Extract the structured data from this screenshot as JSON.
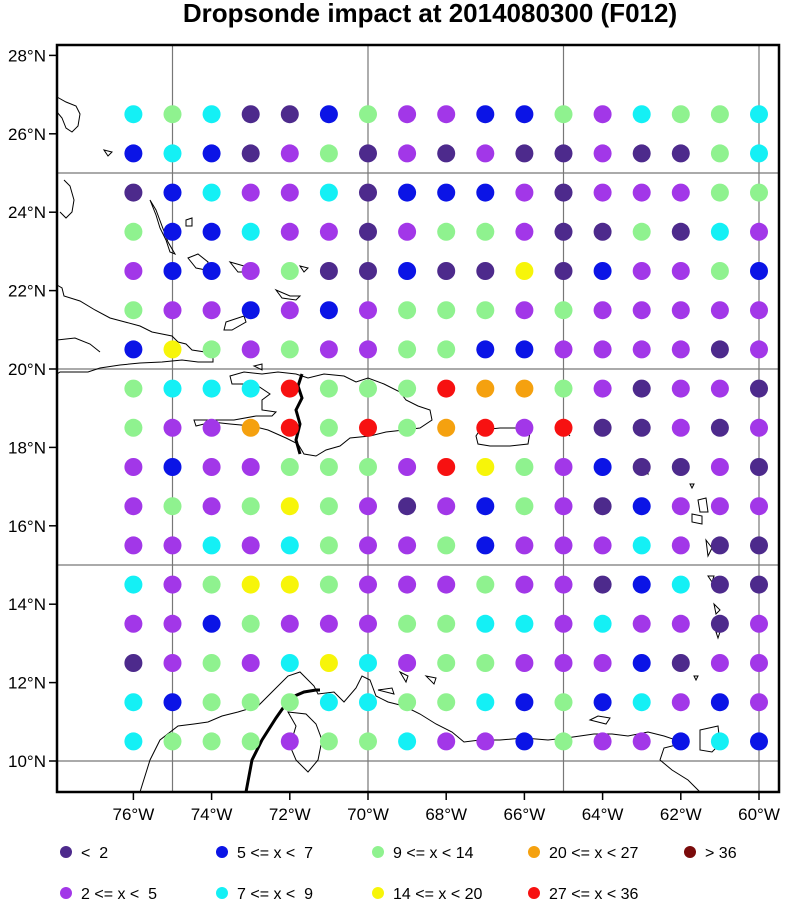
{
  "title": "Dropsonde impact at 2014080300 (F012)",
  "x_ticks": [
    "76°W",
    "74°W",
    "72°W",
    "70°W",
    "68°W",
    "66°W",
    "64°W",
    "62°W",
    "60°W"
  ],
  "y_ticks": [
    "28°N",
    "26°N",
    "24°N",
    "22°N",
    "20°N",
    "18°N",
    "16°N",
    "14°N",
    "12°N",
    "10°N"
  ],
  "legend": [
    {
      "label": "<  2",
      "color": "#4d2a8c"
    },
    {
      "label": "2 <= x <  5",
      "color": "#a237e8"
    },
    {
      "label": "5 <= x <  7",
      "color": "#0b14e6"
    },
    {
      "label": "7 <= x <  9",
      "color": "#14f0f5"
    },
    {
      "label": "9 <= x < 14",
      "color": "#8ff28f"
    },
    {
      "label": "14 <= x < 20",
      "color": "#f7f509"
    },
    {
      "label": "20 <= x < 27",
      "color": "#f5a10f"
    },
    {
      "label": "27 <= x < 36",
      "color": "#f71111"
    },
    {
      "label": "> 36",
      "color": "#7a0b0b"
    }
  ],
  "chart_data": {
    "type": "scatter",
    "title": "Dropsonde impact at 2014080300 (F012)",
    "xlim_lon": [
      -78,
      -59.5
    ],
    "ylim_lat": [
      9.25,
      28.4
    ],
    "gridlines_lon": [
      -75,
      -70,
      -65,
      -60
    ],
    "gridlines_lat": [
      10,
      15,
      20,
      25
    ],
    "grid": true,
    "legend_position": "bottom",
    "lons": [
      -76,
      -75,
      -74,
      -73,
      -72,
      -71,
      -70,
      -69,
      -68,
      -67,
      -66,
      -65,
      -64,
      -63,
      -62,
      -61,
      -60
    ],
    "lats": [
      26.5,
      25.5,
      24.5,
      23.5,
      22.5,
      21.5,
      20.5,
      19.5,
      18.5,
      17.5,
      16.5,
      15.5,
      14.5,
      13.5,
      12.5,
      11.5,
      10.5
    ],
    "category_index_legend": [
      "<  2",
      "2 <= x <  5",
      "5 <= x <  7",
      "7 <= x <  9",
      "9 <= x < 14",
      "14 <= x < 20",
      "20 <= x < 27",
      "27 <= x < 36",
      "> 36"
    ],
    "category_codes_by_row": [
      "34300241122413443",
      "23201401010010043",
      "02311302221011144",
      "42231101441004031",
      "12214002005021142",
      "41121214441411111",
      "25414114422111101",
      "43337444766410110",
      "41167474671700101",
      "12114441754120010",
      "14145410124102111",
      "11313411421113100",
      "31455411141102300",
      "11241114433131101",
      "01413531441112011",
      "32444334432423121",
      "34441443112411232"
    ]
  }
}
